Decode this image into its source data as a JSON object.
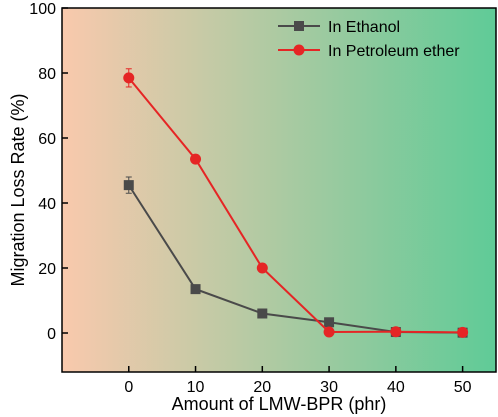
{
  "chart_data": {
    "type": "line",
    "title": "",
    "xlabel": "Amount of LMW-BPR (phr)",
    "ylabel": "Migration Loss Rate (%)",
    "x": [
      0,
      10,
      20,
      30,
      40,
      50
    ],
    "xlim": [
      -10,
      55
    ],
    "ylim": [
      -12,
      100
    ],
    "xticks": [
      0,
      10,
      20,
      30,
      40,
      50
    ],
    "yticks": [
      0,
      20,
      40,
      60,
      80,
      100
    ],
    "grid": false,
    "legend_position": "top-right",
    "background_gradient": [
      "#f9c9ad",
      "#5fcb97"
    ],
    "series": [
      {
        "name": "In Ethanol",
        "color": "#4a4a4a",
        "marker": "square",
        "values": [
          45.5,
          13.5,
          6,
          3.3,
          0.3,
          0.1
        ],
        "error": [
          2.5,
          0.8,
          0.5,
          0.5,
          0.3,
          0.2
        ]
      },
      {
        "name": "In Petroleum ether",
        "color": "#e52525",
        "marker": "circle",
        "values": [
          78.5,
          53.5,
          20,
          0.3,
          0.4,
          0.2
        ],
        "error": [
          2.8,
          0.8,
          0.6,
          0.3,
          0.3,
          0.2
        ]
      }
    ]
  }
}
